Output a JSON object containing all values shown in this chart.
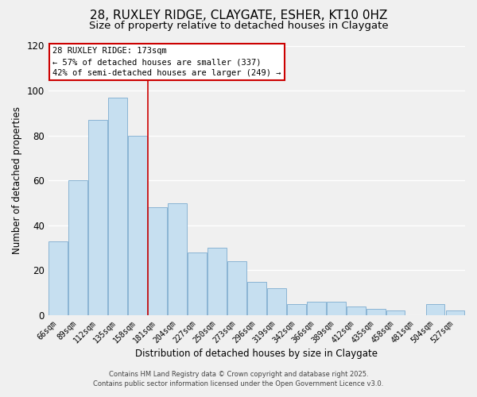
{
  "title": "28, RUXLEY RIDGE, CLAYGATE, ESHER, KT10 0HZ",
  "subtitle": "Size of property relative to detached houses in Claygate",
  "xlabel": "Distribution of detached houses by size in Claygate",
  "ylabel": "Number of detached properties",
  "categories": [
    "66sqm",
    "89sqm",
    "112sqm",
    "135sqm",
    "158sqm",
    "181sqm",
    "204sqm",
    "227sqm",
    "250sqm",
    "273sqm",
    "296sqm",
    "319sqm",
    "342sqm",
    "366sqm",
    "389sqm",
    "412sqm",
    "435sqm",
    "458sqm",
    "481sqm",
    "504sqm",
    "527sqm"
  ],
  "values": [
    33,
    60,
    87,
    97,
    80,
    48,
    50,
    28,
    30,
    24,
    15,
    12,
    5,
    6,
    6,
    4,
    3,
    2,
    0,
    5,
    2
  ],
  "bar_color": "#c6dff0",
  "bar_edge_color": "#8ab4d4",
  "vline_color": "#cc0000",
  "ylim": [
    0,
    120
  ],
  "yticks": [
    0,
    20,
    40,
    60,
    80,
    100,
    120
  ],
  "annotation_title": "28 RUXLEY RIDGE: 173sqm",
  "annotation_line1": "← 57% of detached houses are smaller (337)",
  "annotation_line2": "42% of semi-detached houses are larger (249) →",
  "annotation_box_color": "#ffffff",
  "annotation_box_edge": "#cc0000",
  "footer1": "Contains HM Land Registry data © Crown copyright and database right 2025.",
  "footer2": "Contains public sector information licensed under the Open Government Licence v3.0.",
  "background_color": "#f0f0f0",
  "plot_bg_color": "#f0f0f0",
  "title_fontsize": 11,
  "subtitle_fontsize": 9.5,
  "grid_color": "#ffffff"
}
